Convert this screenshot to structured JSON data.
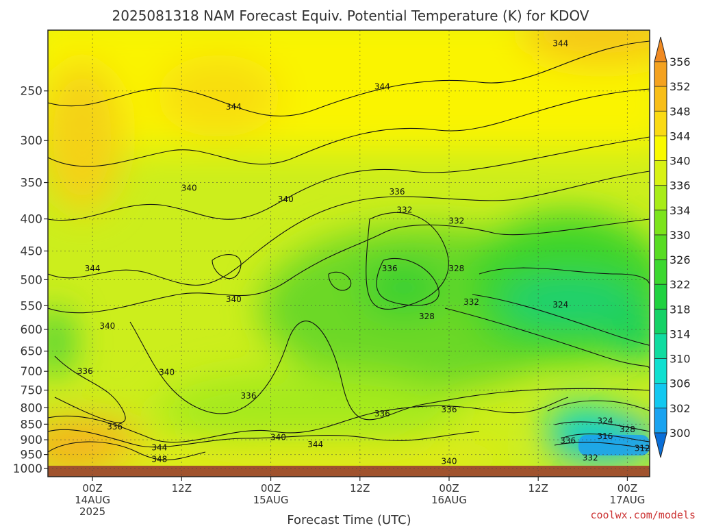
{
  "chart_data": {
    "type": "heatmap",
    "title": "2025081318 NAM Forecast Equiv. Potential Temperature (K) for KDOV",
    "xlabel": "Forecast Time (UTC)",
    "ylabel": "",
    "y_scale": "log",
    "y_inverted": true,
    "ylim": [
      1000,
      200
    ],
    "yticks": [
      250,
      300,
      350,
      400,
      450,
      500,
      550,
      600,
      650,
      700,
      750,
      800,
      850,
      900,
      950,
      1000
    ],
    "ytick_labels": [
      "250",
      "300",
      "350",
      "400",
      "450",
      "500",
      "550",
      "600",
      "650",
      "700",
      "750",
      "800",
      "850",
      "900",
      "950",
      "1000"
    ],
    "xlim": [
      "2025-08-13T18:00Z",
      "2025-08-17T03:00Z"
    ],
    "xticks": [
      {
        "time": "2025-08-14T00:00Z",
        "line1": "00Z",
        "line2": "14AUG",
        "line3": "2025"
      },
      {
        "time": "2025-08-14T12:00Z",
        "line1": "12Z",
        "line2": "",
        "line3": ""
      },
      {
        "time": "2025-08-15T00:00Z",
        "line1": "00Z",
        "line2": "15AUG",
        "line3": ""
      },
      {
        "time": "2025-08-15T12:00Z",
        "line1": "12Z",
        "line2": "",
        "line3": ""
      },
      {
        "time": "2025-08-16T00:00Z",
        "line1": "00Z",
        "line2": "16AUG",
        "line3": ""
      },
      {
        "time": "2025-08-16T12:00Z",
        "line1": "12Z",
        "line2": "",
        "line3": ""
      },
      {
        "time": "2025-08-17T00:00Z",
        "line1": "00Z",
        "line2": "17AUG",
        "line3": ""
      }
    ],
    "grid": true,
    "colorbar": {
      "levels": [
        300,
        302,
        306,
        310,
        314,
        318,
        322,
        326,
        330,
        334,
        336,
        340,
        344,
        348,
        352,
        356
      ],
      "labels": [
        "300",
        "302",
        "306",
        "310",
        "314",
        "318",
        "322",
        "326",
        "330",
        "334",
        "336",
        "340",
        "344",
        "348",
        "352",
        "356"
      ],
      "colors": [
        "#0a6fd8",
        "#1aa3f0",
        "#12c8f0",
        "#10e0d0",
        "#10dca0",
        "#14d266",
        "#20d240",
        "#3cd830",
        "#58dc22",
        "#7ce41c",
        "#a8ec18",
        "#d8f214",
        "#fafa00",
        "#fada14",
        "#f8be18",
        "#f4a220"
      ],
      "extend": "both"
    },
    "contour_labels": [
      {
        "time": "2025-08-16T15:00Z",
        "pressure": 210,
        "value": "344"
      },
      {
        "time": "2025-08-15T15:00Z",
        "pressure": 246,
        "value": "344"
      },
      {
        "time": "2025-08-14T19:00Z",
        "pressure": 265,
        "value": "344"
      },
      {
        "time": "2025-08-14T13:00Z",
        "pressure": 357,
        "value": "340"
      },
      {
        "time": "2025-08-15T02:00Z",
        "pressure": 372,
        "value": "340"
      },
      {
        "time": "2025-08-15T17:00Z",
        "pressure": 362,
        "value": "336"
      },
      {
        "time": "2025-08-15T18:00Z",
        "pressure": 387,
        "value": "332"
      },
      {
        "time": "2025-08-16T01:00Z",
        "pressure": 403,
        "value": "332"
      },
      {
        "time": "2025-08-14T00:00Z",
        "pressure": 480,
        "value": "344"
      },
      {
        "time": "2025-08-15T16:00Z",
        "pressure": 480,
        "value": "336"
      },
      {
        "time": "2025-08-16T01:00Z",
        "pressure": 480,
        "value": "328"
      },
      {
        "time": "2025-08-14T19:00Z",
        "pressure": 537,
        "value": "340"
      },
      {
        "time": "2025-08-16T03:00Z",
        "pressure": 543,
        "value": "332"
      },
      {
        "time": "2025-08-16T15:00Z",
        "pressure": 548,
        "value": "324"
      },
      {
        "time": "2025-08-15T21:00Z",
        "pressure": 572,
        "value": "328"
      },
      {
        "time": "2025-08-14T02:00Z",
        "pressure": 593,
        "value": "340"
      },
      {
        "time": "2025-08-13T23:00Z",
        "pressure": 700,
        "value": "336"
      },
      {
        "time": "2025-08-14T10:00Z",
        "pressure": 702,
        "value": "340"
      },
      {
        "time": "2025-08-14T21:00Z",
        "pressure": 766,
        "value": "336"
      },
      {
        "time": "2025-08-15T15:00Z",
        "pressure": 818,
        "value": "336"
      },
      {
        "time": "2025-08-16T00:00Z",
        "pressure": 806,
        "value": "336"
      },
      {
        "time": "2025-08-14T03:00Z",
        "pressure": 858,
        "value": "336"
      },
      {
        "time": "2025-08-16T21:00Z",
        "pressure": 840,
        "value": "324"
      },
      {
        "time": "2025-08-17T00:00Z",
        "pressure": 866,
        "value": "328"
      },
      {
        "time": "2025-08-15T01:00Z",
        "pressure": 892,
        "value": "340"
      },
      {
        "time": "2025-08-16T16:00Z",
        "pressure": 903,
        "value": "336"
      },
      {
        "time": "2025-08-15T06:00Z",
        "pressure": 916,
        "value": "344"
      },
      {
        "time": "2025-08-14T09:00Z",
        "pressure": 926,
        "value": "344"
      },
      {
        "time": "2025-08-16T21:00Z",
        "pressure": 888,
        "value": "316"
      },
      {
        "time": "2025-08-17T02:00Z",
        "pressure": 928,
        "value": "312"
      },
      {
        "time": "2025-08-14T09:00Z",
        "pressure": 967,
        "value": "348"
      },
      {
        "time": "2025-08-16T19:00Z",
        "pressure": 962,
        "value": "332"
      },
      {
        "time": "2025-08-16T00:00Z",
        "pressure": 974,
        "value": "340"
      }
    ]
  },
  "credit": "coolwx.com/models"
}
